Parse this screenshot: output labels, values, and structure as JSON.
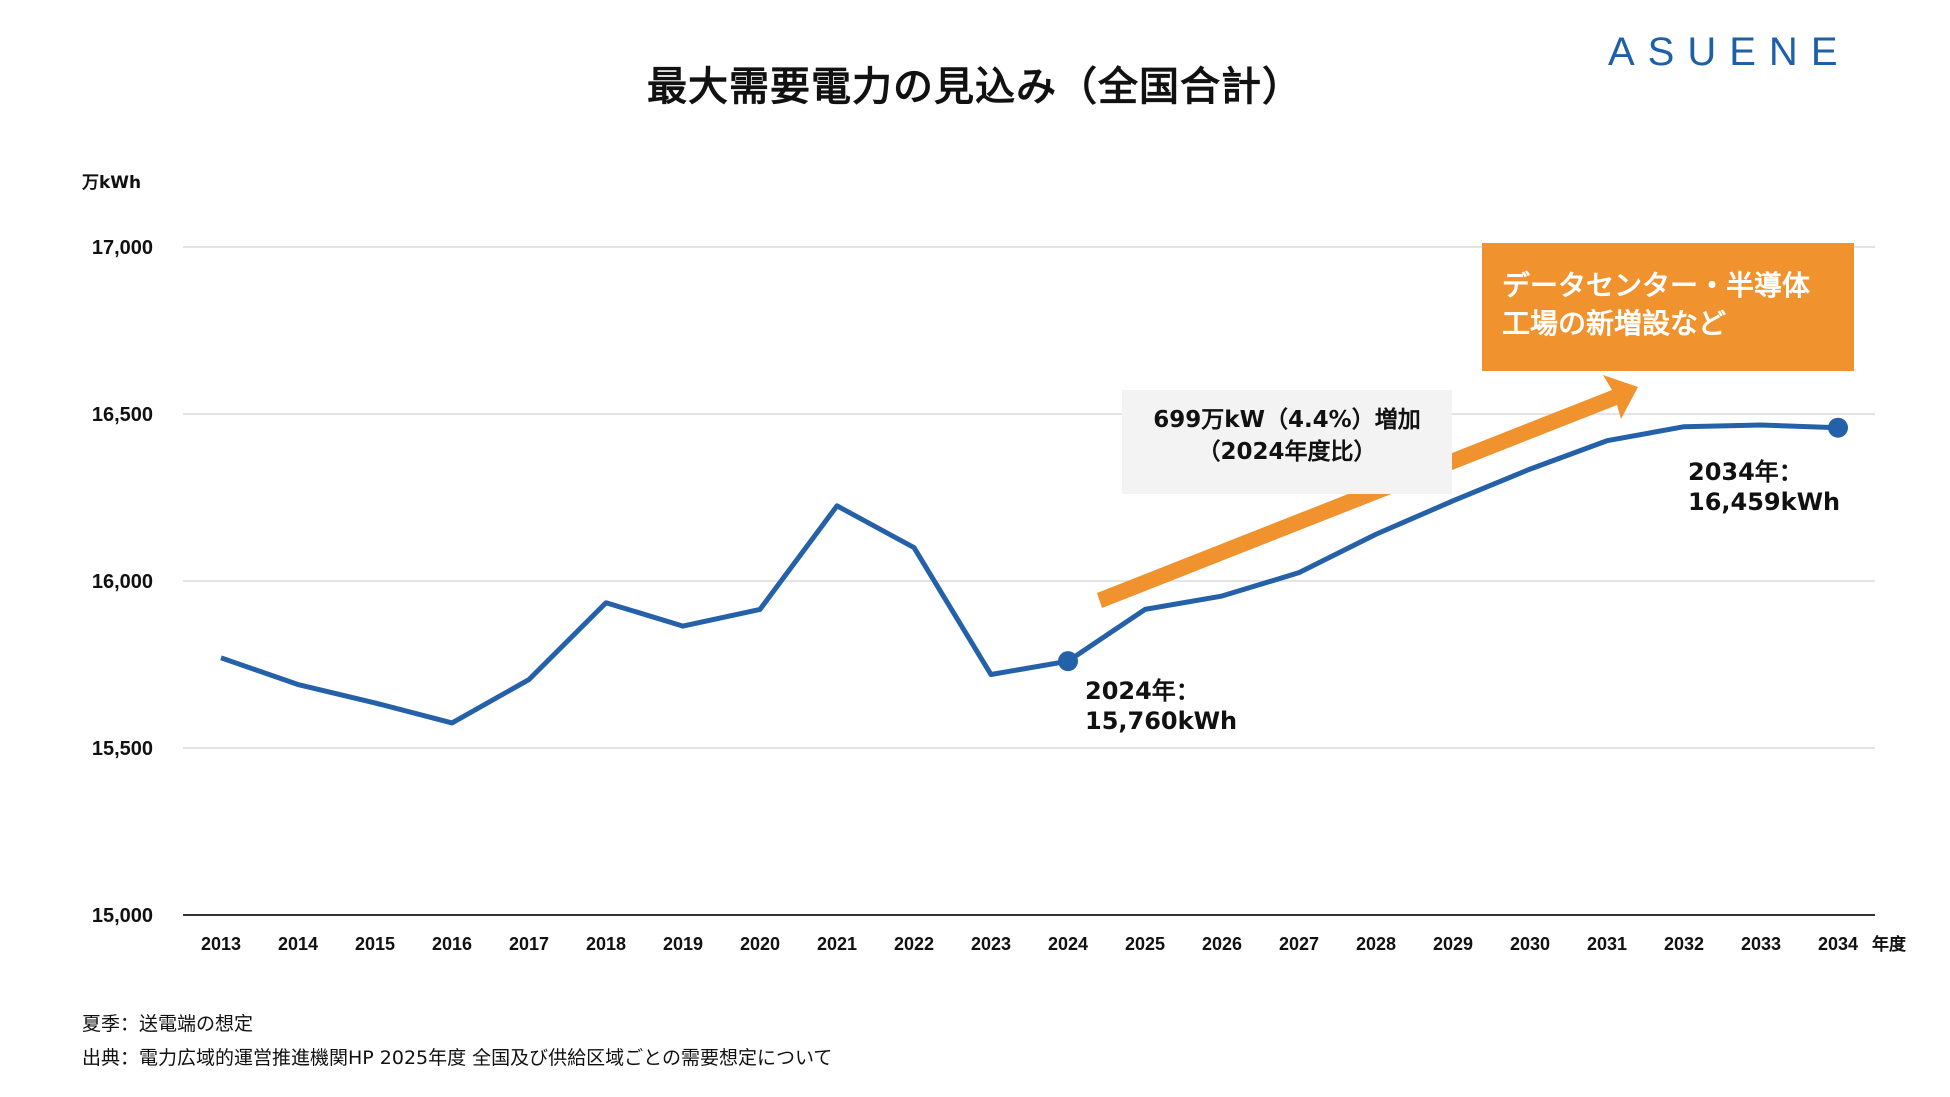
{
  "header": {
    "title": "最大需要電力の見込み（全国合計）",
    "logo": "ASUENE"
  },
  "colors": {
    "line": "#2461a8",
    "accent": "#f0922e",
    "logo": "#1d5fa8"
  },
  "chart_data": {
    "type": "line",
    "title": "最大需要電力の見込み（全国合計）",
    "ylabel": "万kWh",
    "xlabel": "年度",
    "ylim": [
      15000,
      17000
    ],
    "yticks": [
      15000,
      15500,
      16000,
      16500,
      17000
    ],
    "ytick_labels": [
      "15,000",
      "15,500",
      "16,000",
      "16,500",
      "17,000"
    ],
    "grid": true,
    "categories": [
      "2013",
      "2014",
      "2015",
      "2016",
      "2017",
      "2018",
      "2019",
      "2020",
      "2021",
      "2022",
      "2023",
      "2024",
      "2025",
      "2026",
      "2027",
      "2028",
      "2029",
      "2030",
      "2031",
      "2032",
      "2033",
      "2034"
    ],
    "series": [
      {
        "name": "最大需要電力",
        "values": [
          15770,
          15690,
          15635,
          15575,
          15705,
          15935,
          15865,
          15915,
          16225,
          16100,
          15720,
          15760,
          15915,
          15955,
          16025,
          16140,
          16240,
          16335,
          16420,
          16462,
          16467,
          16459
        ]
      }
    ],
    "highlighted_points": [
      {
        "category": "2024",
        "line1": "2024年：",
        "line2": "15,760kWh"
      },
      {
        "category": "2034",
        "line1": "2034年：",
        "line2": "16,459kWh"
      }
    ],
    "annotations": {
      "growth_line1": "699万kW（4.4%）増加",
      "growth_line2": "（2024年度比）",
      "callout_line1": "データセンター・半導体",
      "callout_line2": "工場の新増設など"
    }
  },
  "notes": {
    "line1": "夏季：送電端の想定",
    "line2": "出典：電力広域的運営推進機関HP 2025年度 全国及び供給区域ごとの需要想定について"
  }
}
